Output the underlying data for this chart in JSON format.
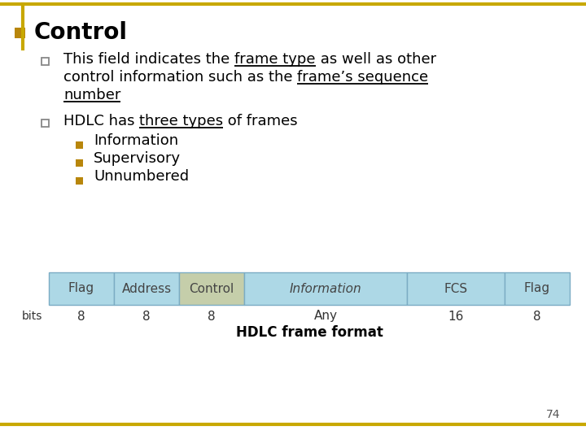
{
  "title": "Control",
  "title_color": "#000000",
  "title_fontsize": 20,
  "bullet_color": "#B8860B",
  "table_labels": [
    "Flag",
    "Address",
    "Control",
    "Information",
    "FCS",
    "Flag"
  ],
  "table_bits": [
    "8",
    "8",
    "8",
    "Any",
    "16",
    "8"
  ],
  "table_widths": [
    1,
    1,
    1,
    2.5,
    1.5,
    1
  ],
  "table_cell_color": "#ADD8E6",
  "table_control_color": "#C5CEAA",
  "table_caption": "HDLC frame format",
  "slide_border_color": "#C8A800",
  "page_number": "74",
  "background_color": "#FFFFFF",
  "body_fontsize": 13,
  "sub_fontsize": 13,
  "sub_bullets": [
    "Information",
    "Supervisory",
    "Unnumbered"
  ],
  "text_color": "#000000",
  "bullet_sq_color": "#6aaa6a",
  "sub_bullet_color": "#B8860B"
}
